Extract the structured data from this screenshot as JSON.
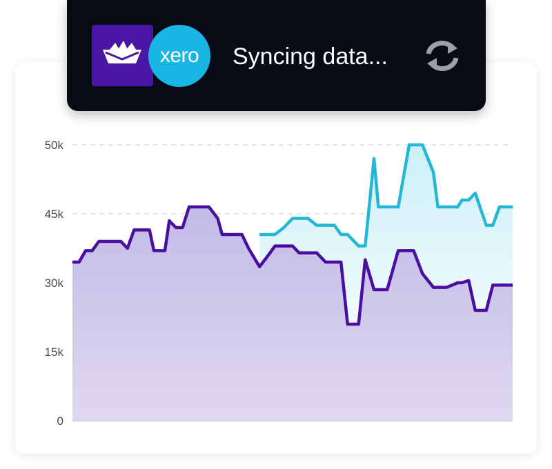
{
  "sync": {
    "status_text": "Syncing data...",
    "brand_logo_icon": "boat-logo-icon",
    "xero_label": "xero",
    "refresh_icon": "sync-arrows-icon"
  },
  "colors": {
    "banner_bg": "#070b16",
    "brand_purple": "#4a16a6",
    "xero_blue": "#19b5e3",
    "series_purple": "#4a0fa0",
    "series_cyan": "#25b7d6",
    "icon_gray": "#9aa0a8"
  },
  "chart_data": {
    "type": "area",
    "grid": true,
    "yticks": [
      {
        "value": 0,
        "label": "0"
      },
      {
        "value": 15000,
        "label": "15k"
      },
      {
        "value": 30000,
        "label": "30k"
      },
      {
        "value": 45000,
        "label": "45k"
      },
      {
        "value": 50000,
        "label": "50k"
      }
    ],
    "ylim": [
      0,
      50000
    ],
    "xlim": [
      0,
      100
    ],
    "series": [
      {
        "color": "#4a0fa0",
        "x": [
          0,
          1.5,
          3,
          4.5,
          6,
          8,
          11,
          12.5,
          14,
          16,
          17.5,
          18.5,
          21,
          22,
          23.5,
          25,
          26.5,
          29.5,
          31,
          33,
          34,
          36.5,
          38.5,
          40,
          42.5,
          44.5,
          46,
          48,
          50,
          51.5,
          53.5,
          55.5,
          57.5,
          59.5,
          61,
          62.5,
          65,
          66.5,
          68.5,
          69.5,
          71.5,
          74,
          76.5,
          77.5,
          79.5,
          82,
          83,
          85,
          87.5,
          88.5,
          90,
          91.5,
          94,
          95.5,
          97,
          98.5,
          100
        ],
        "values": [
          34500,
          34500,
          37000,
          37000,
          39000,
          39000,
          39000,
          37500,
          41500,
          41500,
          41500,
          37000,
          37000,
          43500,
          42000,
          42000,
          45500,
          45500,
          45500,
          44000,
          40500,
          40500,
          40500,
          37500,
          33500,
          36000,
          38000,
          38000,
          38000,
          36500,
          36500,
          36500,
          34500,
          34500,
          34500,
          21000,
          21000,
          35000,
          28500,
          28500,
          28500,
          37000,
          37000,
          37000,
          32000,
          29000,
          29000,
          29000,
          30000,
          30000,
          30500,
          24000,
          24000,
          29500,
          29500,
          29500,
          29500
        ]
      },
      {
        "color": "#25b7d6",
        "x": [
          42.5,
          44.5,
          46,
          48,
          50,
          51.5,
          53.5,
          55.5,
          57.5,
          59.5,
          61,
          62.5,
          65,
          66.5,
          68.5,
          69.5,
          71.5,
          74,
          76.5,
          77.5,
          79.5,
          82,
          83,
          85,
          87.5,
          88.5,
          90,
          91.5,
          94,
          95.5,
          97,
          98.5,
          100
        ],
        "values": [
          40500,
          40500,
          40500,
          42000,
          44000,
          44000,
          44000,
          42500,
          42500,
          42500,
          40500,
          40500,
          38000,
          38000,
          49000,
          45500,
          45500,
          45500,
          50500,
          50500,
          50500,
          48000,
          45500,
          45500,
          45500,
          46000,
          46000,
          46500,
          42500,
          42500,
          45500,
          45500,
          45500
        ]
      }
    ]
  }
}
